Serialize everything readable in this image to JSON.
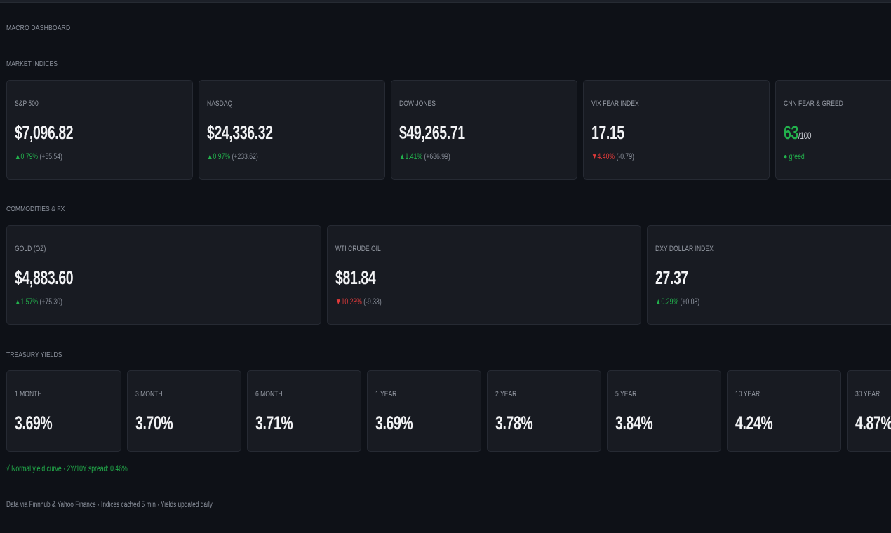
{
  "page_title": "MACRO DASHBOARD",
  "sections": {
    "indices": "MARKET INDICES",
    "commodities": "COMMODITIES & FX",
    "treasury": "TREASURY YIELDS"
  },
  "indices": [
    {
      "label": "S&P 500",
      "value": "$7,096.82",
      "dir": "▲",
      "pct": "0.79%",
      "abs": "(+55.54)"
    },
    {
      "label": "NASDAQ",
      "value": "$24,336.32",
      "dir": "▲",
      "pct": "0.97%",
      "abs": "(+233.62)"
    },
    {
      "label": "DOW JONES",
      "value": "$49,265.71",
      "dir": "▲",
      "pct": "1.41%",
      "abs": "(+686.99)"
    },
    {
      "label": "VIX FEAR INDEX",
      "value": "17.15",
      "dir": "▼",
      "pct": "4.40%",
      "abs": "(-0.79)"
    }
  ],
  "fear_greed": {
    "label": "CNN FEAR & GREED",
    "value": "63",
    "scale": "/100",
    "dot": "●",
    "sentiment": "greed"
  },
  "commodities": [
    {
      "label": "GOLD (OZ)",
      "value": "$4,883.60",
      "dir": "▲",
      "pct": "1.57%",
      "abs": "(+75.30)"
    },
    {
      "label": "WTI CRUDE OIL",
      "value": "$81.84",
      "dir": "▼",
      "pct": "10.23%",
      "abs": "(-9.33)"
    },
    {
      "label": "DXY DOLLAR INDEX",
      "value": "27.37",
      "dir": "▲",
      "pct": "0.29%",
      "abs": "(+0.08)"
    }
  ],
  "yields": [
    {
      "label": "1 MONTH",
      "value": "3.69%"
    },
    {
      "label": "3 MONTH",
      "value": "3.70%"
    },
    {
      "label": "6 MONTH",
      "value": "3.71%"
    },
    {
      "label": "1 YEAR",
      "value": "3.69%"
    },
    {
      "label": "2 YEAR",
      "value": "3.78%"
    },
    {
      "label": "5 YEAR",
      "value": "3.84%"
    },
    {
      "label": "10 YEAR",
      "value": "4.24%"
    },
    {
      "label": "30 YEAR",
      "value": "4.87%"
    }
  ],
  "curve_note": "√ Normal yield curve · 2Y/10Y spread: 0.46%",
  "footer": "Data via Finnhub & Yahoo Finance · Indices cached 5 min · Yields updated daily",
  "colors": {
    "up": "#22b14c",
    "down": "#e03a3a",
    "background": "#0e1117",
    "card": "#181b22"
  }
}
